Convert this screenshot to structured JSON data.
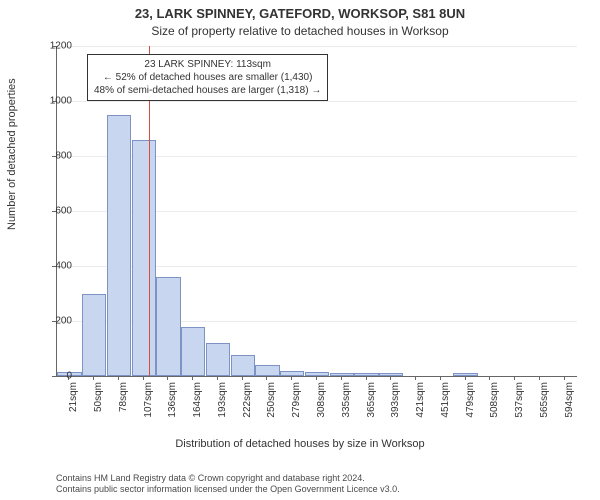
{
  "title_main": "23, LARK SPINNEY, GATEFORD, WORKSOP, S81 8UN",
  "title_sub": "Size of property relative to detached houses in Worksop",
  "ylabel": "Number of detached properties",
  "xlabel": "Distribution of detached houses by size in Worksop",
  "chart": {
    "type": "histogram",
    "bar_fill": "#c9d6ef",
    "bar_stroke": "#7d93c6",
    "vline_color": "#d84b3f",
    "grid_color": "#666666",
    "background": "#ffffff",
    "axis_color": "#666666",
    "ylim_max": 1200,
    "ytick_step": 200,
    "yticks": [
      0,
      200,
      400,
      600,
      800,
      1000,
      1200
    ],
    "x_labels": [
      "21sqm",
      "50sqm",
      "78sqm",
      "107sqm",
      "136sqm",
      "164sqm",
      "193sqm",
      "222sqm",
      "250sqm",
      "279sqm",
      "308sqm",
      "335sqm",
      "365sqm",
      "393sqm",
      "421sqm",
      "451sqm",
      "479sqm",
      "508sqm",
      "537sqm",
      "565sqm",
      "594sqm"
    ],
    "values": [
      14,
      300,
      950,
      860,
      360,
      180,
      120,
      75,
      40,
      18,
      14,
      12,
      12,
      12,
      0,
      0,
      10,
      0,
      0,
      0,
      0
    ],
    "vline_x_index": 3.2
  },
  "annotation": {
    "line1": "23 LARK SPINNEY: 113sqm",
    "line2": "← 52% of detached houses are smaller (1,430)",
    "line3": "48% of semi-detached houses are larger (1,318) →"
  },
  "footer": {
    "line1": "Contains HM Land Registry data © Crown copyright and database right 2024.",
    "line2": "Contains public sector information licensed under the Open Government Licence v3.0."
  },
  "fonts": {
    "title_size_pt": 13,
    "subtitle_size_pt": 12,
    "axis_label_size_pt": 11,
    "tick_size_pt": 10,
    "annot_size_pt": 10,
    "footer_size_pt": 9
  }
}
